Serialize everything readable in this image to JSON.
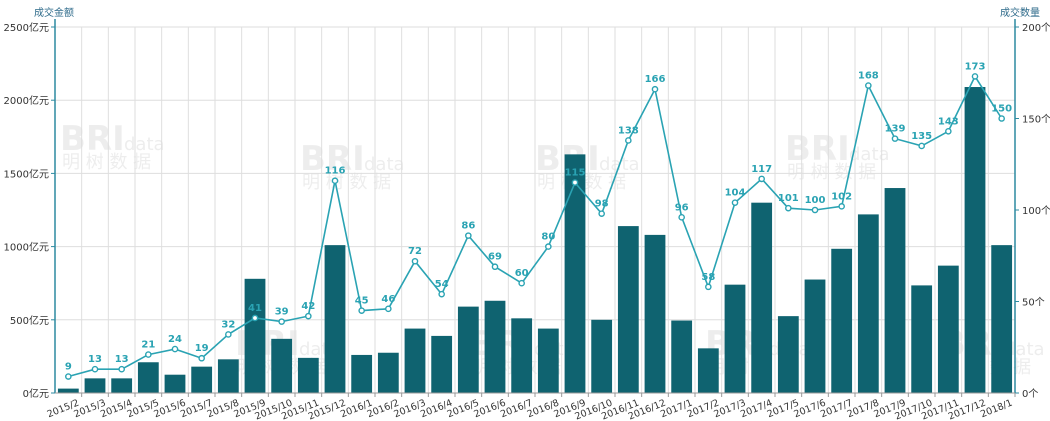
{
  "colors": {
    "bar": "#0f6370",
    "line": "#2aa3b3",
    "axis": "#2d8aa0",
    "grid": "#dedede"
  },
  "chart_data": {
    "type": "bar+line",
    "categories": [
      "2015/2",
      "2015/3",
      "2015/4",
      "2015/5",
      "2015/6",
      "2015/7",
      "2015/8",
      "2015/9",
      "2015/10",
      "2015/11",
      "2015/12",
      "2016/1",
      "2016/2",
      "2016/3",
      "2016/4",
      "2016/5",
      "2016/6",
      "2016/7",
      "2016/8",
      "2016/9",
      "2016/10",
      "2016/11",
      "2016/12",
      "2017/1",
      "2017/2",
      "2017/3",
      "2017/4",
      "2017/5",
      "2017/6",
      "2017/7",
      "2017/8",
      "2017/9",
      "2017/10",
      "2017/11",
      "2017/12",
      "2018/1"
    ],
    "series": [
      {
        "name": "成交金额",
        "type": "bar",
        "axis": "left",
        "values": [
          30,
          100,
          100,
          210,
          125,
          180,
          230,
          780,
          370,
          240,
          1010,
          260,
          275,
          440,
          390,
          590,
          630,
          510,
          440,
          1630,
          500,
          1140,
          1080,
          495,
          305,
          740,
          1300,
          525,
          775,
          985,
          1220,
          1400,
          735,
          870,
          2090,
          1010
        ]
      },
      {
        "name": "成交数量",
        "type": "line",
        "axis": "right",
        "values": [
          9,
          13,
          13,
          21,
          24,
          19,
          32,
          41,
          39,
          42,
          116,
          45,
          46,
          72,
          54,
          86,
          69,
          60,
          80,
          115,
          98,
          138,
          166,
          96,
          58,
          104,
          117,
          101,
          100,
          102,
          168,
          139,
          135,
          143,
          173,
          150
        ]
      }
    ],
    "ylabel_left": "成交金额",
    "ylabel_right": "成交数量",
    "ylim_left": [
      0,
      2500
    ],
    "ylim_right": [
      0,
      200
    ],
    "yticks_left": [
      "0亿元",
      "500亿元",
      "1000亿元",
      "1500亿元",
      "2000亿元",
      "2500亿元"
    ],
    "yticks_right": [
      "0个",
      "50个",
      "100个",
      "150个",
      "200个"
    ],
    "watermark": {
      "main": "BRI",
      "suffix": "data",
      "sub": "明 树 数 据"
    },
    "grid": true
  }
}
